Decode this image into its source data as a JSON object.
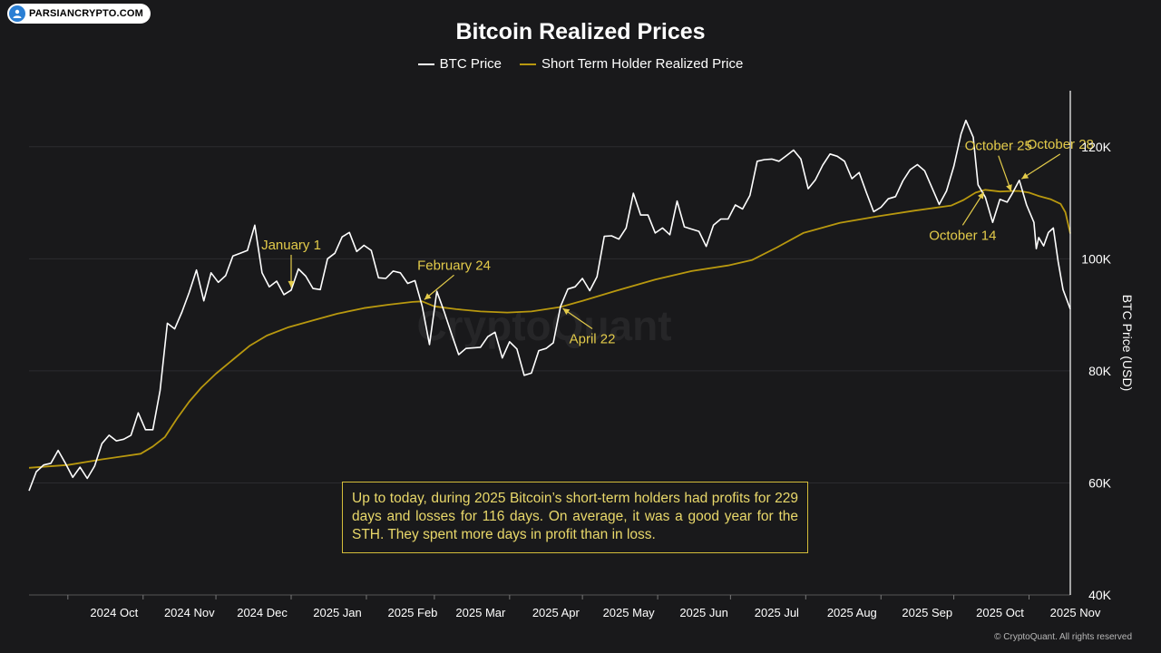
{
  "badge": {
    "text": "PARSIANCRYPTO.COM",
    "icon": "bitcoin-people-icon"
  },
  "note": "Up to today, during 2025 Bitcoin’s short-term holders had profits for 229 days and losses for 116 days. On average, it was a good year for the STH. They spent more days in profit than in loss.",
  "copyright": "© CryptoQuant. All rights reserved",
  "watermark": "CryptoQuant",
  "colors": {
    "background": "#19191b",
    "btc": "#ffffff",
    "sth": "#b8980f",
    "annotation": "#e3cb4a"
  },
  "chart_data": {
    "type": "line",
    "title": "Bitcoin Realized Prices",
    "ylabel": "BTC Price (USD)",
    "xlabel": "",
    "ylim": [
      40000,
      130000
    ],
    "x_range": [
      "2024-09-15",
      "2025-11-18"
    ],
    "y_ticks": [
      {
        "value": 40000,
        "label": "40K"
      },
      {
        "value": 60000,
        "label": "60K"
      },
      {
        "value": 80000,
        "label": "80K"
      },
      {
        "value": 100000,
        "label": "100K"
      },
      {
        "value": 120000,
        "label": "120K"
      }
    ],
    "x_ticks": [
      {
        "date": "2024-10-01",
        "label": "2024 Oct"
      },
      {
        "date": "2024-11-01",
        "label": "2024 Nov"
      },
      {
        "date": "2024-12-01",
        "label": "2024 Dec"
      },
      {
        "date": "2025-01-01",
        "label": "2025 Jan"
      },
      {
        "date": "2025-02-01",
        "label": "2025 Feb"
      },
      {
        "date": "2025-03-01",
        "label": "2025 Mar"
      },
      {
        "date": "2025-04-01",
        "label": "2025 Apr"
      },
      {
        "date": "2025-05-01",
        "label": "2025 May"
      },
      {
        "date": "2025-06-01",
        "label": "2025 Jun"
      },
      {
        "date": "2025-07-01",
        "label": "2025 Jul"
      },
      {
        "date": "2025-08-01",
        "label": "2025 Aug"
      },
      {
        "date": "2025-09-01",
        "label": "2025 Sep"
      },
      {
        "date": "2025-10-01",
        "label": "2025 Oct"
      },
      {
        "date": "2025-11-01",
        "label": "2025 Nov"
      }
    ],
    "grid": true,
    "legend_position": "top-center",
    "series": [
      {
        "name": "BTC Price",
        "color": "#ffffff",
        "points": [
          [
            "2024-09-15",
            58600
          ],
          [
            "2024-09-18",
            62000
          ],
          [
            "2024-09-21",
            63200
          ],
          [
            "2024-09-24",
            63500
          ],
          [
            "2024-09-27",
            65800
          ],
          [
            "2024-09-30",
            63500
          ],
          [
            "2024-10-03",
            61000
          ],
          [
            "2024-10-06",
            62800
          ],
          [
            "2024-10-09",
            60800
          ],
          [
            "2024-10-12",
            63000
          ],
          [
            "2024-10-15",
            67000
          ],
          [
            "2024-10-18",
            68500
          ],
          [
            "2024-10-21",
            67500
          ],
          [
            "2024-10-24",
            67800
          ],
          [
            "2024-10-27",
            68500
          ],
          [
            "2024-10-30",
            72500
          ],
          [
            "2024-11-02",
            69500
          ],
          [
            "2024-11-05",
            69500
          ],
          [
            "2024-11-08",
            76500
          ],
          [
            "2024-11-11",
            88500
          ],
          [
            "2024-11-14",
            87500
          ],
          [
            "2024-11-17",
            90500
          ],
          [
            "2024-11-20",
            94000
          ],
          [
            "2024-11-23",
            98000
          ],
          [
            "2024-11-26",
            92500
          ],
          [
            "2024-11-29",
            97500
          ],
          [
            "2024-12-02",
            95800
          ],
          [
            "2024-12-05",
            97000
          ],
          [
            "2024-12-08",
            100500
          ],
          [
            "2024-12-11",
            101000
          ],
          [
            "2024-12-14",
            101500
          ],
          [
            "2024-12-17",
            106000
          ],
          [
            "2024-12-20",
            97500
          ],
          [
            "2024-12-23",
            95000
          ],
          [
            "2024-12-26",
            96000
          ],
          [
            "2024-12-29",
            93600
          ],
          [
            "2025-01-01",
            94400
          ],
          [
            "2025-01-04",
            98200
          ],
          [
            "2025-01-07",
            96900
          ],
          [
            "2025-01-10",
            94700
          ],
          [
            "2025-01-13",
            94500
          ],
          [
            "2025-01-16",
            100000
          ],
          [
            "2025-01-19",
            101000
          ],
          [
            "2025-01-22",
            103900
          ],
          [
            "2025-01-25",
            104700
          ],
          [
            "2025-01-28",
            101300
          ],
          [
            "2025-01-31",
            102400
          ],
          [
            "2025-02-03",
            101500
          ],
          [
            "2025-02-06",
            96600
          ],
          [
            "2025-02-09",
            96500
          ],
          [
            "2025-02-12",
            97800
          ],
          [
            "2025-02-15",
            97500
          ],
          [
            "2025-02-18",
            95600
          ],
          [
            "2025-02-21",
            96100
          ],
          [
            "2025-02-24",
            91500
          ],
          [
            "2025-02-27",
            84700
          ],
          [
            "2025-03-02",
            94200
          ],
          [
            "2025-03-05",
            90600
          ],
          [
            "2025-03-08",
            86700
          ],
          [
            "2025-03-11",
            82900
          ],
          [
            "2025-03-14",
            84000
          ],
          [
            "2025-03-17",
            84100
          ],
          [
            "2025-03-20",
            84200
          ],
          [
            "2025-03-23",
            86100
          ],
          [
            "2025-03-26",
            86900
          ],
          [
            "2025-03-29",
            82300
          ],
          [
            "2025-04-01",
            85200
          ],
          [
            "2025-04-04",
            83900
          ],
          [
            "2025-04-07",
            79200
          ],
          [
            "2025-04-10",
            79600
          ],
          [
            "2025-04-13",
            83600
          ],
          [
            "2025-04-16",
            84000
          ],
          [
            "2025-04-19",
            85000
          ],
          [
            "2025-04-22",
            91500
          ],
          [
            "2025-04-25",
            94600
          ],
          [
            "2025-04-28",
            95000
          ],
          [
            "2025-05-01",
            96500
          ],
          [
            "2025-05-04",
            94300
          ],
          [
            "2025-05-07",
            96800
          ],
          [
            "2025-05-10",
            104000
          ],
          [
            "2025-05-13",
            104100
          ],
          [
            "2025-05-16",
            103500
          ],
          [
            "2025-05-19",
            105500
          ],
          [
            "2025-05-22",
            111700
          ],
          [
            "2025-05-25",
            107800
          ],
          [
            "2025-05-28",
            107800
          ],
          [
            "2025-05-31",
            104600
          ],
          [
            "2025-06-03",
            105500
          ],
          [
            "2025-06-06",
            104300
          ],
          [
            "2025-06-09",
            110300
          ],
          [
            "2025-06-12",
            105700
          ],
          [
            "2025-06-15",
            105300
          ],
          [
            "2025-06-18",
            104900
          ],
          [
            "2025-06-21",
            102200
          ],
          [
            "2025-06-24",
            106000
          ],
          [
            "2025-06-27",
            107100
          ],
          [
            "2025-06-30",
            107100
          ],
          [
            "2025-07-03",
            109600
          ],
          [
            "2025-07-06",
            108900
          ],
          [
            "2025-07-09",
            111300
          ],
          [
            "2025-07-12",
            117400
          ],
          [
            "2025-07-15",
            117700
          ],
          [
            "2025-07-18",
            117800
          ],
          [
            "2025-07-21",
            117400
          ],
          [
            "2025-07-24",
            118400
          ],
          [
            "2025-07-27",
            119400
          ],
          [
            "2025-07-30",
            117800
          ],
          [
            "2025-08-02",
            112500
          ],
          [
            "2025-08-05",
            114100
          ],
          [
            "2025-08-08",
            116700
          ],
          [
            "2025-08-11",
            118700
          ],
          [
            "2025-08-14",
            118300
          ],
          [
            "2025-08-17",
            117400
          ],
          [
            "2025-08-20",
            114300
          ],
          [
            "2025-08-23",
            115400
          ],
          [
            "2025-08-26",
            111800
          ],
          [
            "2025-08-29",
            108400
          ],
          [
            "2025-09-01",
            109200
          ],
          [
            "2025-09-04",
            110700
          ],
          [
            "2025-09-07",
            111100
          ],
          [
            "2025-09-10",
            113900
          ],
          [
            "2025-09-13",
            115900
          ],
          [
            "2025-09-16",
            116800
          ],
          [
            "2025-09-19",
            115700
          ],
          [
            "2025-09-22",
            112700
          ],
          [
            "2025-09-25",
            109700
          ],
          [
            "2025-09-28",
            112100
          ],
          [
            "2025-10-01",
            116500
          ],
          [
            "2025-10-04",
            122300
          ],
          [
            "2025-10-06",
            124700
          ],
          [
            "2025-10-09",
            121700
          ],
          [
            "2025-10-11",
            113200
          ],
          [
            "2025-10-14",
            111000
          ],
          [
            "2025-10-17",
            106500
          ],
          [
            "2025-10-20",
            110600
          ],
          [
            "2025-10-23",
            110100
          ],
          [
            "2025-10-25",
            111600
          ],
          [
            "2025-10-28",
            114000
          ],
          [
            "2025-10-31",
            109600
          ],
          [
            "2025-11-03",
            106500
          ],
          [
            "2025-11-04",
            101800
          ],
          [
            "2025-11-05",
            103800
          ],
          [
            "2025-11-07",
            102300
          ],
          [
            "2025-11-09",
            104700
          ],
          [
            "2025-11-11",
            105500
          ],
          [
            "2025-11-13",
            99500
          ],
          [
            "2025-11-15",
            94500
          ],
          [
            "2025-11-17",
            92200
          ],
          [
            "2025-11-18",
            91000
          ]
        ]
      },
      {
        "name": "Short Term Holder Realized Price",
        "color": "#b8980f",
        "points": [
          [
            "2024-09-15",
            62700
          ],
          [
            "2024-10-01",
            63200
          ],
          [
            "2024-10-15",
            64200
          ],
          [
            "2024-10-31",
            65200
          ],
          [
            "2024-11-05",
            66500
          ],
          [
            "2024-11-10",
            68200
          ],
          [
            "2024-11-15",
            71500
          ],
          [
            "2024-11-20",
            74500
          ],
          [
            "2024-11-25",
            77000
          ],
          [
            "2024-12-01",
            79500
          ],
          [
            "2024-12-08",
            82000
          ],
          [
            "2024-12-15",
            84500
          ],
          [
            "2024-12-22",
            86300
          ],
          [
            "2024-12-31",
            87800
          ],
          [
            "2025-01-10",
            89000
          ],
          [
            "2025-01-20",
            90200
          ],
          [
            "2025-01-31",
            91200
          ],
          [
            "2025-02-10",
            91800
          ],
          [
            "2025-02-20",
            92300
          ],
          [
            "2025-02-24",
            92400
          ],
          [
            "2025-03-01",
            91500
          ],
          [
            "2025-03-10",
            91000
          ],
          [
            "2025-03-20",
            90600
          ],
          [
            "2025-03-31",
            90400
          ],
          [
            "2025-04-10",
            90600
          ],
          [
            "2025-04-22",
            91400
          ],
          [
            "2025-05-01",
            92500
          ],
          [
            "2025-05-15",
            94300
          ],
          [
            "2025-05-31",
            96300
          ],
          [
            "2025-06-15",
            97800
          ],
          [
            "2025-06-30",
            98800
          ],
          [
            "2025-07-10",
            99800
          ],
          [
            "2025-07-20",
            102000
          ],
          [
            "2025-07-31",
            104600
          ],
          [
            "2025-08-15",
            106400
          ],
          [
            "2025-08-31",
            107600
          ],
          [
            "2025-09-15",
            108600
          ],
          [
            "2025-09-30",
            109500
          ],
          [
            "2025-10-05",
            110500
          ],
          [
            "2025-10-10",
            111800
          ],
          [
            "2025-10-14",
            112300
          ],
          [
            "2025-10-20",
            112000
          ],
          [
            "2025-10-25",
            112100
          ],
          [
            "2025-10-28",
            112100
          ],
          [
            "2025-11-01",
            111800
          ],
          [
            "2025-11-05",
            111200
          ],
          [
            "2025-11-10",
            110600
          ],
          [
            "2025-11-14",
            109800
          ],
          [
            "2025-11-16",
            108300
          ],
          [
            "2025-11-18",
            104500
          ]
        ]
      }
    ],
    "annotations": [
      {
        "label": "January 1",
        "target_date": "2025-01-01",
        "target_value": 94400,
        "text_offset": [
          0,
          -45
        ]
      },
      {
        "label": "February 24",
        "target_date": "2025-02-24",
        "target_value": 92400,
        "text_offset": [
          35,
          -35
        ]
      },
      {
        "label": "April 22",
        "target_date": "2025-04-22",
        "target_value": 91400,
        "text_offset": [
          35,
          40
        ]
      },
      {
        "label": "October 14",
        "target_date": "2025-10-14",
        "target_value": 112300,
        "text_offset": [
          -25,
          55
        ]
      },
      {
        "label": "October 25",
        "target_date": "2025-10-25",
        "target_value": 111600,
        "text_offset": [
          -15,
          -48
        ]
      },
      {
        "label": "October 28",
        "target_date": "2025-10-28",
        "target_value": 114000,
        "text_offset": [
          45,
          -35
        ]
      }
    ]
  }
}
